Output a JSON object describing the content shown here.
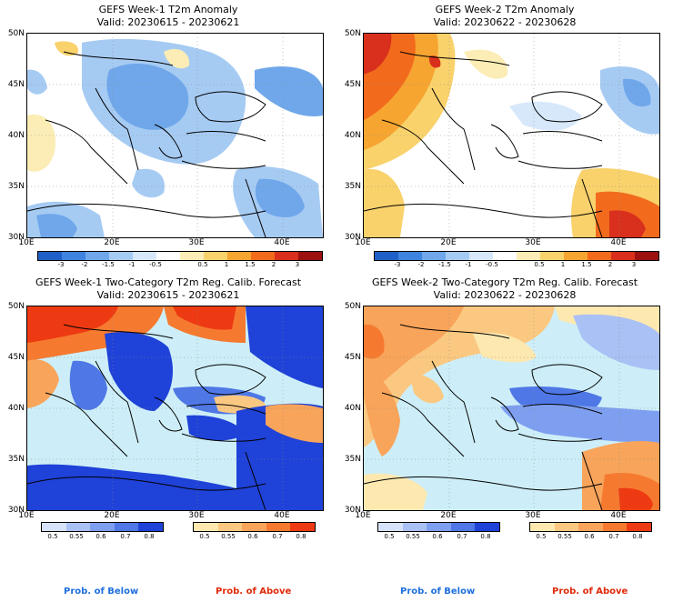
{
  "panels": [
    {
      "title": "GEFS Week-1 T2m Anomaly",
      "valid": "Valid: 20230615 - 20230621"
    },
    {
      "title": "GEFS Week-2 T2m Anomaly",
      "valid": "Valid: 20230622 - 20230628"
    },
    {
      "title": "GEFS Week-1 Two-Category T2m Reg. Calib. Forecast",
      "valid": "Valid: 20230615 - 20230621"
    },
    {
      "title": "GEFS Week-2 Two-Category T2m Reg. Calib. Forecast",
      "valid": "Valid: 20230622 - 20230628"
    }
  ],
  "lat_labels": [
    "50N",
    "45N",
    "40N",
    "35N",
    "30N"
  ],
  "lon_labels": [
    "10E",
    "20E",
    "30E",
    "40E"
  ],
  "anomaly_ticks": [
    "-3",
    "-2",
    "-1.5",
    "-1",
    "-0.5",
    "0.5",
    "1",
    "1.5",
    "2",
    "3"
  ],
  "anomaly_colors": [
    "#1f5fc8",
    "#3f83df",
    "#6fa7ea",
    "#a6cbf3",
    "#d6e8fa",
    "#ffffff",
    "#fbedb5",
    "#f9d26c",
    "#f6a531",
    "#f26b1d",
    "#d8301c",
    "#9c1010"
  ],
  "prob_ticks": [
    "0.5",
    "0.55",
    "0.6",
    "0.7",
    "0.8"
  ],
  "below_colors": [
    "#d7e3fb",
    "#a9c1f5",
    "#7e9ff0",
    "#4f78e6",
    "#1f42d8"
  ],
  "above_colors": [
    "#fde8b0",
    "#fbc881",
    "#f8a45a",
    "#f57a30",
    "#ee3a12"
  ],
  "footer": {
    "below": "Prob. of Below",
    "above": "Prob. of Above"
  },
  "colors": {
    "below_text": "#1e6fdc",
    "above_text": "#e02a0a",
    "sea_blue": "#cdeef8",
    "map_white": "#ffffff"
  }
}
